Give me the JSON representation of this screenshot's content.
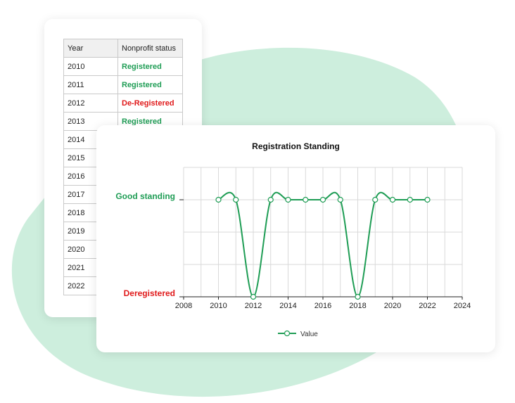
{
  "table": {
    "headers": [
      "Year",
      "Nonprofit status"
    ],
    "rows": [
      {
        "year": "2010",
        "status": "Registered",
        "kind": "good"
      },
      {
        "year": "2011",
        "status": "Registered",
        "kind": "good"
      },
      {
        "year": "2012",
        "status": "De-Registered",
        "kind": "bad"
      },
      {
        "year": "2013",
        "status": "Registered",
        "kind": "good"
      },
      {
        "year": "2014",
        "status": "",
        "kind": ""
      },
      {
        "year": "2015",
        "status": "",
        "kind": ""
      },
      {
        "year": "2016",
        "status": "",
        "kind": ""
      },
      {
        "year": "2017",
        "status": "",
        "kind": ""
      },
      {
        "year": "2018",
        "status": "",
        "kind": ""
      },
      {
        "year": "2019",
        "status": "",
        "kind": ""
      },
      {
        "year": "2020",
        "status": "",
        "kind": ""
      },
      {
        "year": "2021",
        "status": "",
        "kind": ""
      },
      {
        "year": "2022",
        "status": "",
        "kind": ""
      }
    ]
  },
  "colors": {
    "good": "#1f9d55",
    "bad": "#e0191a",
    "line": "#1f9d55",
    "background_blob": "#cdeedd"
  },
  "chart_data": {
    "type": "line",
    "title": "Registration Standing",
    "x": [
      2010,
      2011,
      2012,
      2013,
      2014,
      2015,
      2016,
      2017,
      2018,
      2019,
      2020,
      2021,
      2022
    ],
    "series": [
      {
        "name": "Value",
        "values": [
          1,
          1,
          0,
          1,
          1,
          1,
          1,
          1,
          0,
          1,
          1,
          1,
          1
        ]
      }
    ],
    "xlim": [
      2008,
      2024
    ],
    "x_ticks": [
      2008,
      2010,
      2012,
      2014,
      2016,
      2018,
      2020,
      2022,
      2024
    ],
    "ylim": [
      0,
      1
    ],
    "y_tick_labels": [
      {
        "value": 1,
        "label": "Good standing",
        "color": "#1f9d55"
      },
      {
        "value": 0,
        "label": "Deregistered",
        "color": "#e0191a"
      }
    ],
    "grid": true,
    "legend": "bottom-center"
  }
}
